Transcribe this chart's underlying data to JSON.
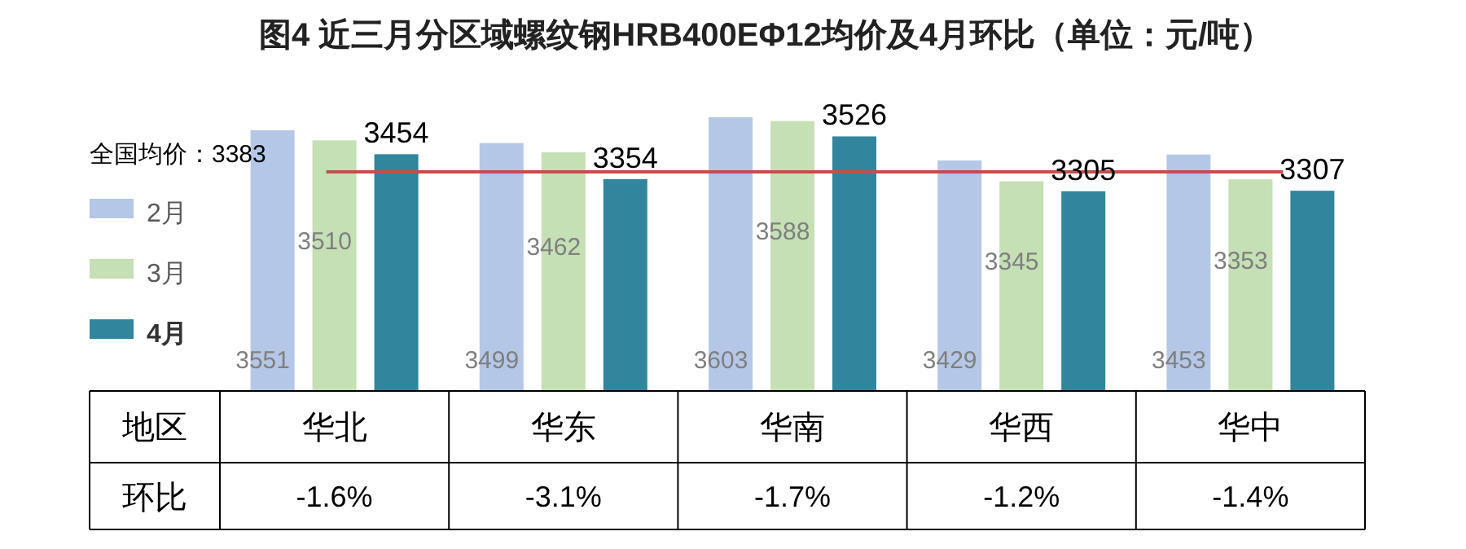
{
  "chart_data": {
    "type": "bar",
    "title": "图4 近三月分区域螺纹钢HRB400EΦ12均价及4月环比（单位：元/吨）",
    "xlabel": "地区",
    "categories": [
      "华北",
      "华东",
      "华南",
      "华西",
      "华中"
    ],
    "series": [
      {
        "name": "2月",
        "color": "#b4c7e7",
        "values": [
          3551,
          3499,
          3603,
          3429,
          3453
        ]
      },
      {
        "name": "3月",
        "color": "#c5e0b4",
        "values": [
          3510,
          3462,
          3588,
          3345,
          3353
        ]
      },
      {
        "name": "4月",
        "color": "#31859c",
        "values": [
          3454,
          3354,
          3526,
          3305,
          3307
        ]
      }
    ],
    "ylim": [
      2500,
      3603
    ],
    "data_labels": true,
    "legend": "left",
    "ref_lines": [
      {
        "axis": "y",
        "value": 3383,
        "label": "全国均价：3383",
        "color": "#c0504d"
      }
    ],
    "annotations": [
      "环比",
      "-1.6%",
      "-3.1%",
      "-1.7%",
      "-1.2%",
      "-1.4%"
    ]
  }
}
